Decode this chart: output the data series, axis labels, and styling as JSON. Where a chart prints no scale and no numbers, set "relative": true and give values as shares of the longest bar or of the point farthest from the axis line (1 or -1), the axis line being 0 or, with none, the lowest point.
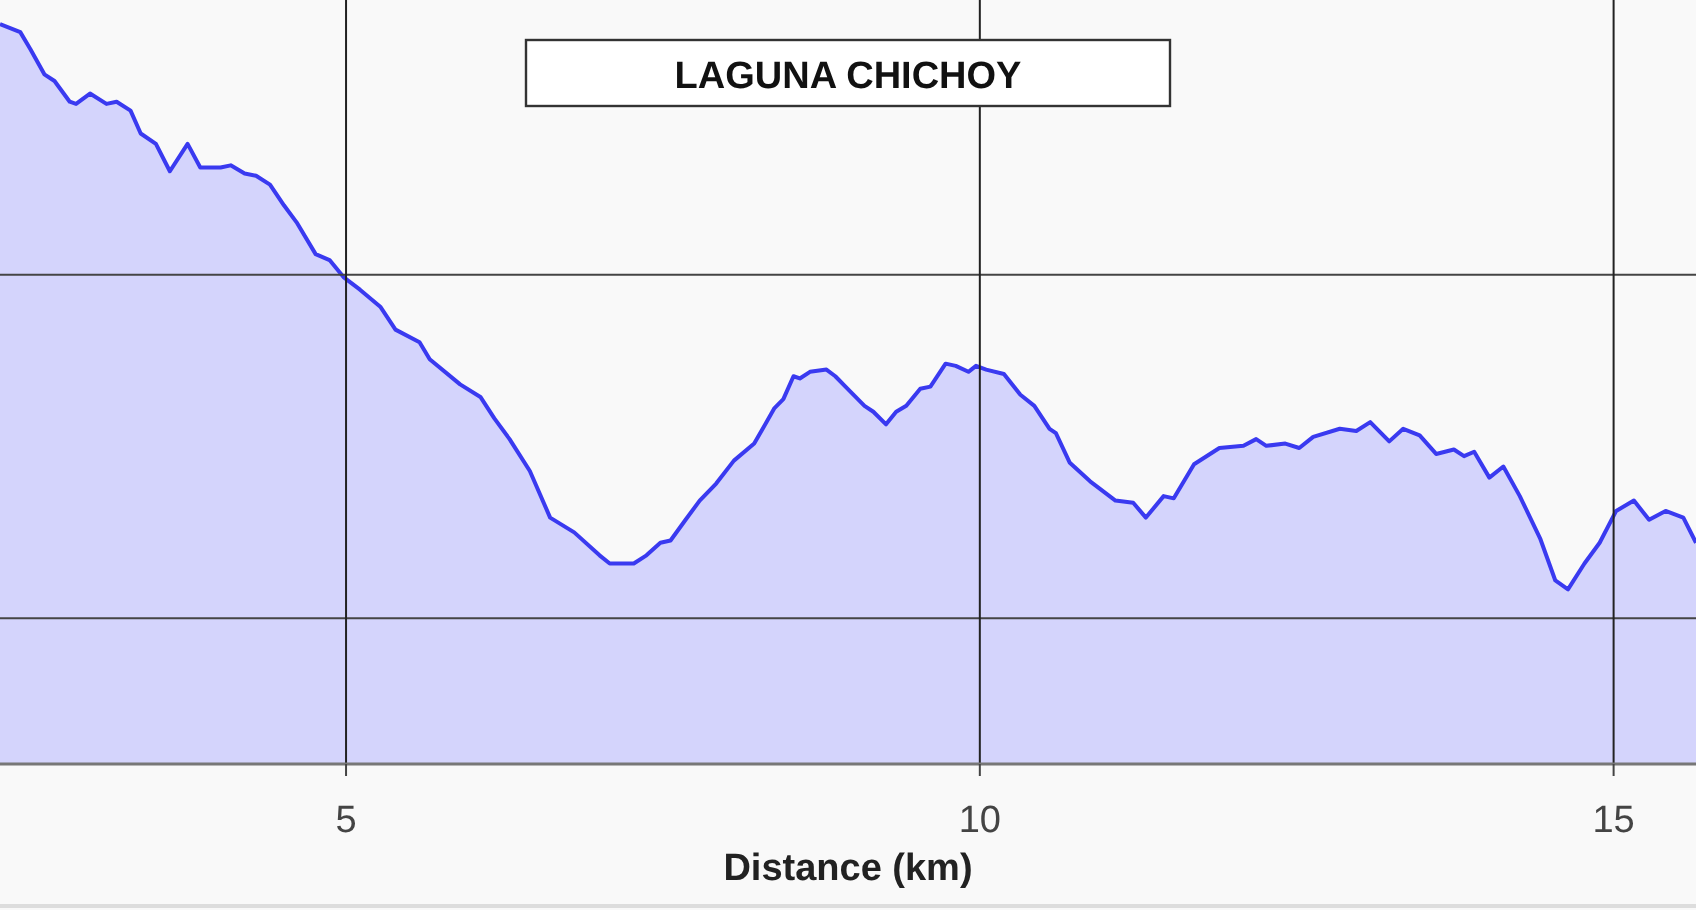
{
  "chart_data": {
    "type": "area",
    "title": "LAGUNA CHICHOY",
    "xlabel": "Distance (km)",
    "relative": true,
    "grid": "x",
    "color": "#3a3af0",
    "xlim": [
      2.27,
      15.65
    ],
    "xticks": [
      5,
      10,
      15
    ],
    "ref_lines": [
      {
        "axis": "y",
        "value": 0.197,
        "color": "#444444"
      },
      {
        "axis": "y",
        "value": 0.661,
        "color": "#444444"
      }
    ],
    "x": [
      2.27,
      2.43,
      2.51,
      2.62,
      2.7,
      2.82,
      2.87,
      2.98,
      3.11,
      3.19,
      3.3,
      3.38,
      3.5,
      3.61,
      3.75,
      3.85,
      4.01,
      4.09,
      4.2,
      4.29,
      4.4,
      4.51,
      4.61,
      4.76,
      4.87,
      4.98,
      5.11,
      5.27,
      5.39,
      5.58,
      5.66,
      5.9,
      6.06,
      6.17,
      6.29,
      6.45,
      6.61,
      6.8,
      7.0,
      7.08,
      7.27,
      7.37,
      7.48,
      7.56,
      7.67,
      7.79,
      7.92,
      8.06,
      8.22,
      8.38,
      8.45,
      8.53,
      8.58,
      8.66,
      8.79,
      8.86,
      8.94,
      9.09,
      9.16,
      9.26,
      9.34,
      9.42,
      9.53,
      9.61,
      9.73,
      9.81,
      9.91,
      9.97,
      10.05,
      10.19,
      10.32,
      10.43,
      10.55,
      10.6,
      10.71,
      10.87,
      11.07,
      11.21,
      11.31,
      11.45,
      11.53,
      11.69,
      11.89,
      12.08,
      12.18,
      12.26,
      12.41,
      12.52,
      12.63,
      12.84,
      12.97,
      13.08,
      13.23,
      13.34,
      13.47,
      13.6,
      13.74,
      13.82,
      13.9,
      14.02,
      14.13,
      14.26,
      14.42,
      14.54,
      14.64,
      14.77,
      14.89,
      15.02,
      15.16,
      15.28,
      15.41,
      15.55,
      15.65
    ],
    "values": [
      1.0,
      0.989,
      0.966,
      0.932,
      0.923,
      0.895,
      0.892,
      0.906,
      0.892,
      0.895,
      0.883,
      0.852,
      0.838,
      0.801,
      0.838,
      0.806,
      0.806,
      0.809,
      0.798,
      0.795,
      0.783,
      0.755,
      0.732,
      0.689,
      0.681,
      0.658,
      0.641,
      0.618,
      0.587,
      0.57,
      0.547,
      0.513,
      0.496,
      0.467,
      0.439,
      0.396,
      0.333,
      0.313,
      0.282,
      0.271,
      0.271,
      0.282,
      0.299,
      0.302,
      0.328,
      0.356,
      0.379,
      0.41,
      0.433,
      0.481,
      0.493,
      0.524,
      0.521,
      0.53,
      0.533,
      0.524,
      0.51,
      0.484,
      0.476,
      0.459,
      0.476,
      0.484,
      0.507,
      0.51,
      0.541,
      0.538,
      0.53,
      0.538,
      0.533,
      0.527,
      0.499,
      0.484,
      0.453,
      0.447,
      0.407,
      0.382,
      0.356,
      0.353,
      0.333,
      0.362,
      0.359,
      0.405,
      0.427,
      0.43,
      0.439,
      0.43,
      0.433,
      0.427,
      0.442,
      0.453,
      0.45,
      0.462,
      0.436,
      0.453,
      0.444,
      0.419,
      0.425,
      0.416,
      0.422,
      0.387,
      0.402,
      0.362,
      0.305,
      0.248,
      0.236,
      0.271,
      0.299,
      0.342,
      0.356,
      0.33,
      0.342,
      0.333,
      0.299
    ]
  }
}
